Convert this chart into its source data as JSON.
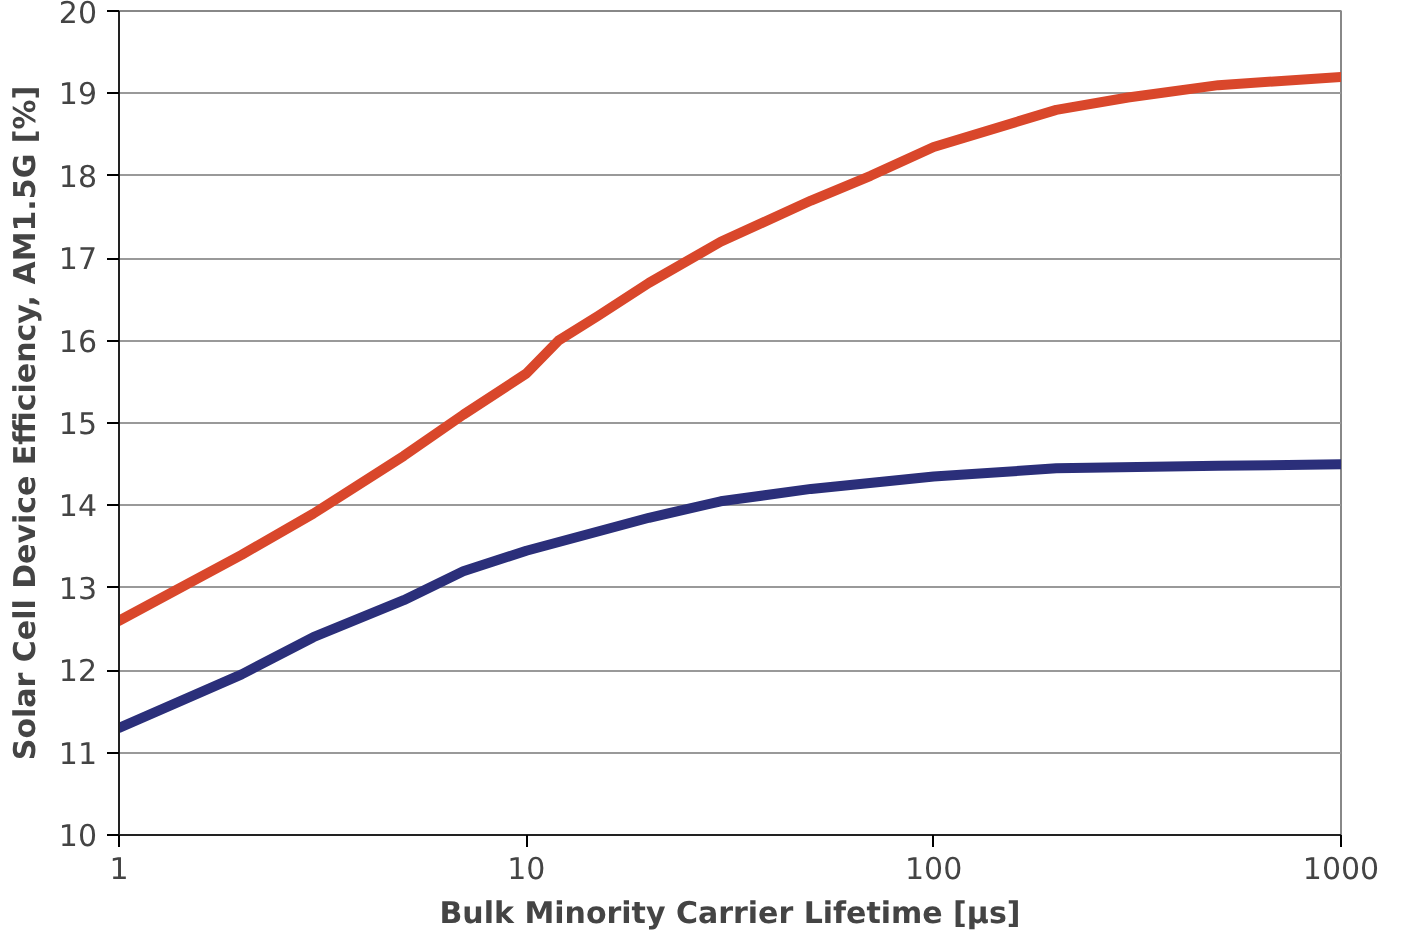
{
  "chart_data": {
    "type": "line",
    "xlabel": "Bulk Minority Carrier Lifetime [µs]",
    "ylabel": "Solar Cell Device Efficiency, AM1.5G [%]",
    "log": "x",
    "xlim": [
      1,
      1000
    ],
    "xticks": [
      1,
      10,
      100,
      1000
    ],
    "ylim": [
      10,
      20
    ],
    "yticks": [
      10,
      11,
      12,
      13,
      14,
      15,
      16,
      17,
      18,
      19,
      20
    ],
    "grid": "y",
    "series": [
      {
        "color": "#d9472b",
        "x": [
          1,
          2,
          3,
          5,
          7,
          10,
          12,
          15,
          20,
          30,
          50,
          70,
          100,
          200,
          300,
          500,
          1000
        ],
        "values": [
          12.6,
          13.4,
          13.9,
          14.6,
          15.1,
          15.6,
          16.0,
          16.3,
          16.7,
          17.2,
          17.7,
          18.0,
          18.35,
          18.8,
          18.95,
          19.1,
          19.2
        ]
      },
      {
        "color": "#2b2f7a",
        "x": [
          1,
          2,
          3,
          5,
          7,
          10,
          20,
          30,
          50,
          100,
          200,
          500,
          1000
        ],
        "values": [
          11.3,
          11.95,
          12.4,
          12.85,
          13.2,
          13.45,
          13.85,
          14.05,
          14.2,
          14.35,
          14.45,
          14.48,
          14.5
        ]
      }
    ]
  }
}
